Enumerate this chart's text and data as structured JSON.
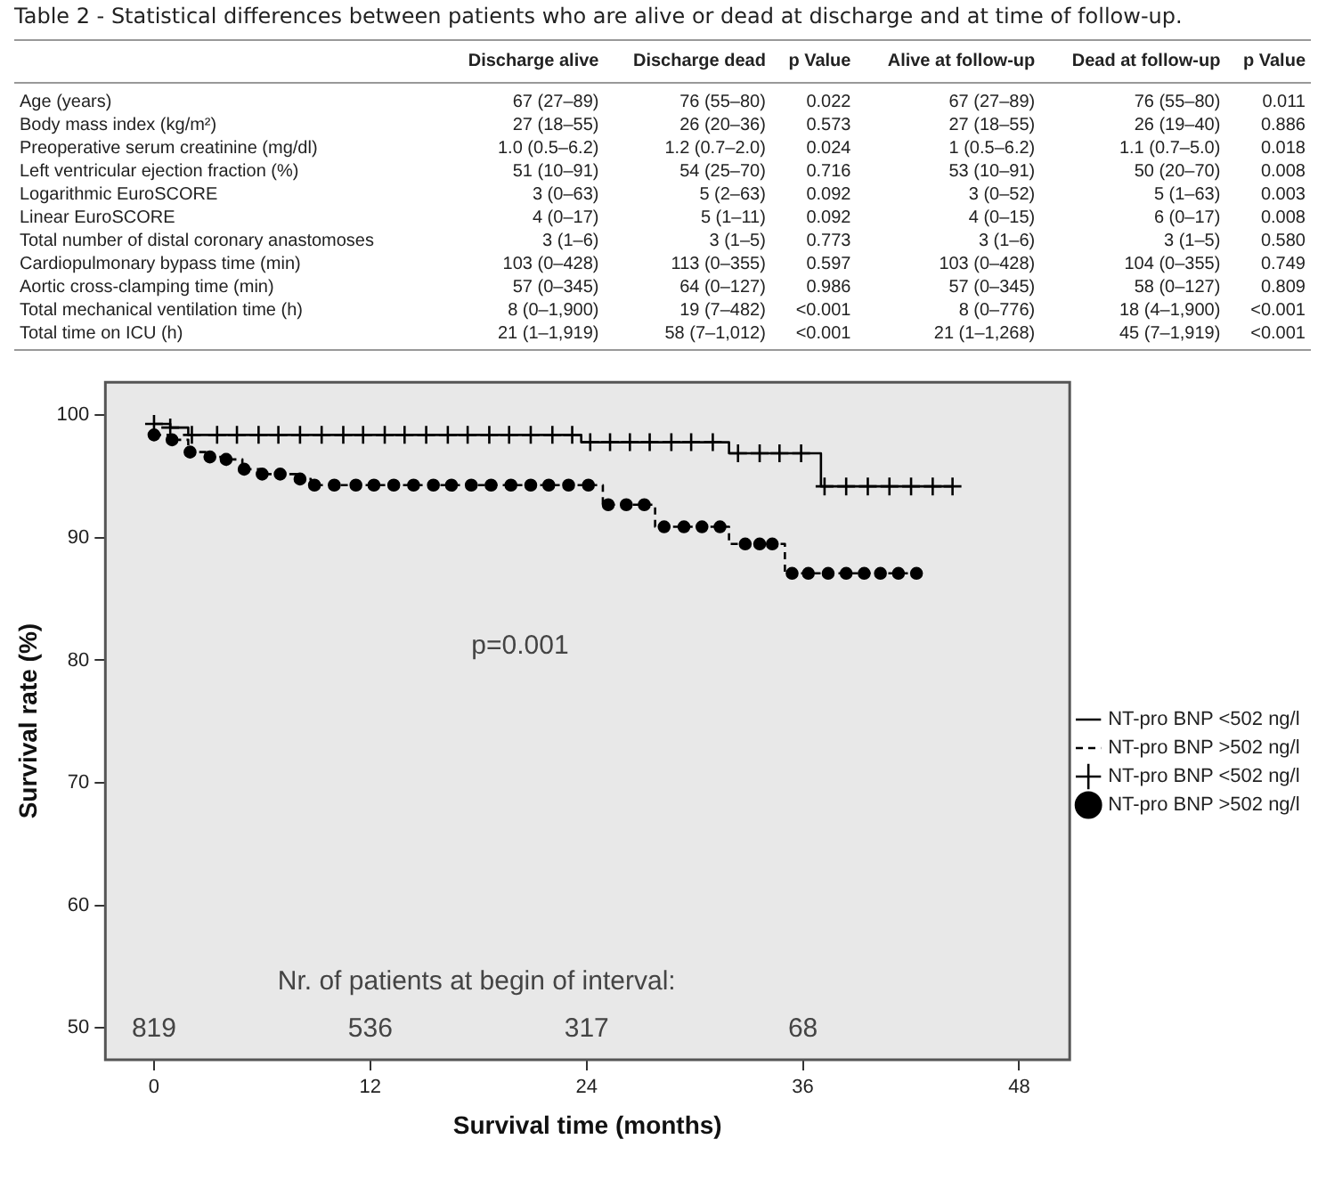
{
  "chart_data": [
    {
      "type": "other",
      "title": "Table 2 - Statistical differences between patients who are alive or dead at discharge and at time of follow-up.",
      "categories": [
        null,
        "Discharge alive",
        "Discharge dead",
        "p Value",
        "Alive at follow-up",
        "Dead at follow-up",
        "p Value"
      ],
      "y_categories": [
        "Age (years)",
        "Body mass index (kg/m²)",
        "Preoperative serum creatinine (mg/dl)",
        "Left ventricular ejection fraction (%)",
        "Logarithmic EuroSCORE",
        "Linear EuroSCORE",
        "Total number of distal coronary anastomoses",
        "Cardiopulmonary bypass time (min)",
        "Aortic cross-clamping time (min)",
        "Total mechanical ventilation time (h)",
        "Total time on ICU (h)"
      ],
      "cell_labels": [
        [
          "67 (27–89)",
          "76 (55–80)",
          "0.022",
          "67 (27–89)",
          "76 (55–80)",
          "0.011"
        ],
        [
          "27 (18–55)",
          "26 (20–36)",
          "0.573",
          "27 (18–55)",
          "26 (19–40)",
          "0.886"
        ],
        [
          "1.0 (0.5–6.2)",
          "1.2 (0.7–2.0)",
          "0.024",
          "1 (0.5–6.2)",
          "1.1 (0.7–5.0)",
          "0.018"
        ],
        [
          "51 (10–91)",
          "54 (25–70)",
          "0.716",
          "53 (10–91)",
          "50 (20–70)",
          "0.008"
        ],
        [
          "3 (0–63)",
          "5 (2–63)",
          "0.092",
          "3 (0–52)",
          "5 (1–63)",
          "0.003"
        ],
        [
          "4 (0–17)",
          "5 (1–11)",
          "0.092",
          "4 (0–15)",
          "6 (0–17)",
          "0.008"
        ],
        [
          "3 (1–6)",
          "3 (1–5)",
          "0.773",
          "3 (1–6)",
          "3 (1–5)",
          "0.580"
        ],
        [
          "103 (0–428)",
          "113 (0–355)",
          "0.597",
          "103 (0–428)",
          "104 (0–355)",
          "0.749"
        ],
        [
          "57 (0–345)",
          "64 (0–127)",
          "0.986",
          "57 (0–345)",
          "58 (0–127)",
          "0.809"
        ],
        [
          "8 (0–1,900)",
          "19 (7–482)",
          "<0.001",
          "8 (0–776)",
          "18 (4–1,900)",
          "<0.001"
        ],
        [
          "21 (1–1,919)",
          "58 (7–1,012)",
          "<0.001",
          "21 (1–1,268)",
          "45 (7–1,919)",
          "<0.001"
        ]
      ]
    },
    {
      "type": "step",
      "xlabel": "Survival time (months)",
      "ylabel": "Survival rate (%)",
      "xlim": [
        -2.7,
        50.8
      ],
      "xticks": [
        0,
        12,
        24,
        36,
        48
      ],
      "ylim": [
        47.4,
        102.7
      ],
      "yticks": [
        50,
        60,
        70,
        80,
        90,
        100
      ],
      "grid": false,
      "legend": "right",
      "series": [
        {
          "name": "NT-pro BNP <502 ng/l",
          "type": "step",
          "line_style": "solid",
          "color": "#000000",
          "x": [
            0,
            0.9,
            1.9,
            23.7,
            31.9,
            37.0,
            44.3
          ],
          "values": [
            99.3,
            99.0,
            98.4,
            97.8,
            96.9,
            94.2,
            94.2
          ]
        },
        {
          "name": "NT-pro BNP >502 ng/l",
          "type": "step",
          "line_style": "dashed",
          "color": "#000000",
          "x": [
            0,
            0.8,
            1.9,
            3.0,
            3.8,
            4.9,
            5.9,
            7.9,
            8.7,
            24.9,
            27.8,
            31.9,
            35.0,
            42.3
          ],
          "values": [
            98.4,
            98.0,
            97.0,
            96.6,
            96.4,
            95.6,
            95.2,
            94.8,
            94.3,
            92.7,
            90.9,
            89.5,
            87.1,
            87.1
          ]
        },
        {
          "name": "NT-pro BNP <502 ng/l",
          "type": "scatter",
          "marker": "cross",
          "color": "#000000",
          "x": [
            0,
            0.9,
            2.1,
            3.5,
            4.6,
            5.8,
            6.9,
            8.1,
            9.3,
            10.5,
            11.6,
            12.8,
            13.9,
            15.1,
            16.3,
            17.4,
            18.6,
            19.7,
            20.9,
            22.1,
            23.2,
            24.2,
            25.3,
            26.4,
            27.5,
            28.7,
            29.8,
            31.0,
            32.4,
            33.6,
            34.7,
            35.9,
            37.2,
            38.4,
            39.6,
            40.8,
            42.0,
            43.2,
            44.3
          ],
          "values": [
            99.3,
            99.0,
            98.4,
            98.4,
            98.4,
            98.4,
            98.4,
            98.4,
            98.4,
            98.4,
            98.4,
            98.4,
            98.4,
            98.4,
            98.4,
            98.4,
            98.4,
            98.4,
            98.4,
            98.4,
            98.4,
            97.8,
            97.8,
            97.8,
            97.8,
            97.8,
            97.8,
            97.8,
            96.9,
            96.9,
            96.9,
            96.9,
            94.2,
            94.2,
            94.2,
            94.2,
            94.2,
            94.2,
            94.2
          ]
        },
        {
          "name": "NT-pro BNP >502 ng/l",
          "type": "scatter",
          "marker": "circle",
          "color": "#000000",
          "x": [
            0,
            1.0,
            2.0,
            3.1,
            4.0,
            5.0,
            6.0,
            7.0,
            8.1,
            8.9,
            10.0,
            11.2,
            12.2,
            13.3,
            14.4,
            15.5,
            16.5,
            17.6,
            18.7,
            19.8,
            20.9,
            21.9,
            23.0,
            24.1,
            25.2,
            26.2,
            27.2,
            28.3,
            29.4,
            30.4,
            31.4,
            32.8,
            33.6,
            34.3,
            35.4,
            36.3,
            37.4,
            38.4,
            39.4,
            40.3,
            41.3,
            42.3
          ],
          "values": [
            98.4,
            98.0,
            97.0,
            96.6,
            96.4,
            95.6,
            95.2,
            95.2,
            94.8,
            94.3,
            94.3,
            94.3,
            94.3,
            94.3,
            94.3,
            94.3,
            94.3,
            94.3,
            94.3,
            94.3,
            94.3,
            94.3,
            94.3,
            94.3,
            92.7,
            92.7,
            92.7,
            90.9,
            90.9,
            90.9,
            90.9,
            89.5,
            89.5,
            89.5,
            87.1,
            87.1,
            87.1,
            87.1,
            87.1,
            87.1,
            87.1,
            87.1
          ]
        }
      ],
      "annotations": [
        "p=0.001",
        "Nr. of patients at begin of interval:",
        "819",
        "536",
        "317",
        "68"
      ]
    }
  ]
}
